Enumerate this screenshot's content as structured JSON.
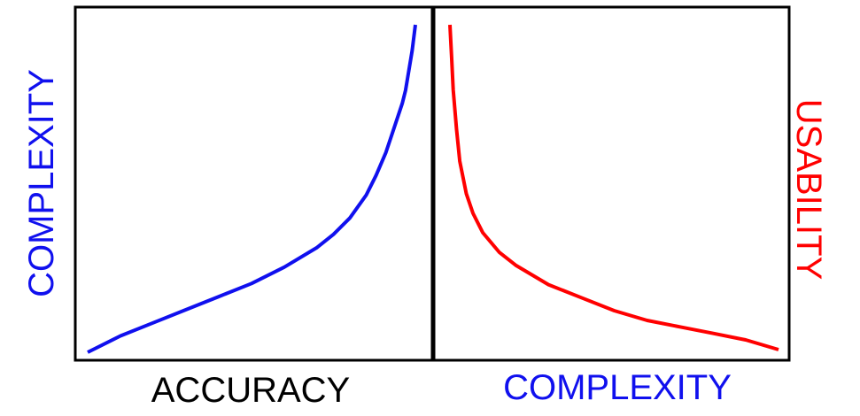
{
  "colors": {
    "left_curve": "#1010ee",
    "right_curve": "#ff0000",
    "frame": "#000000",
    "complexity_label": "#1010ee",
    "accuracy_label": "#000000",
    "usability_label": "#ff0000"
  },
  "chart_data": [
    {
      "type": "line",
      "title": "",
      "xlabel": "ACCURACY",
      "ylabel": "COMPLEXITY",
      "xticks": [],
      "yticks": [],
      "grid": false,
      "legend": "none",
      "series": [
        {
          "color": "#1010ee",
          "x": [
            0.0,
            0.1,
            0.2,
            0.3,
            0.4,
            0.5,
            0.6,
            0.7,
            0.75,
            0.8,
            0.85,
            0.88,
            0.91,
            0.93,
            0.95,
            0.96,
            0.97,
            0.98,
            0.99,
            1.0
          ],
          "y": [
            0.0,
            0.05,
            0.09,
            0.13,
            0.17,
            0.21,
            0.26,
            0.32,
            0.36,
            0.41,
            0.48,
            0.54,
            0.61,
            0.67,
            0.73,
            0.76,
            0.8,
            0.86,
            0.92,
            1.0
          ]
        }
      ]
    },
    {
      "type": "line",
      "title": "",
      "xlabel": "COMPLEXITY",
      "ylabel": "USABILITY",
      "xticks": [],
      "yticks": [],
      "grid": false,
      "legend": "none",
      "series": [
        {
          "color": "#ff0000",
          "x": [
            0.0,
            0.005,
            0.01,
            0.02,
            0.03,
            0.05,
            0.07,
            0.1,
            0.15,
            0.2,
            0.3,
            0.4,
            0.5,
            0.6,
            0.7,
            0.8,
            0.9,
            1.0
          ],
          "y": [
            1.0,
            0.9,
            0.8,
            0.68,
            0.58,
            0.48,
            0.42,
            0.36,
            0.3,
            0.26,
            0.2,
            0.16,
            0.12,
            0.09,
            0.07,
            0.05,
            0.03,
            0.0
          ]
        }
      ]
    }
  ]
}
